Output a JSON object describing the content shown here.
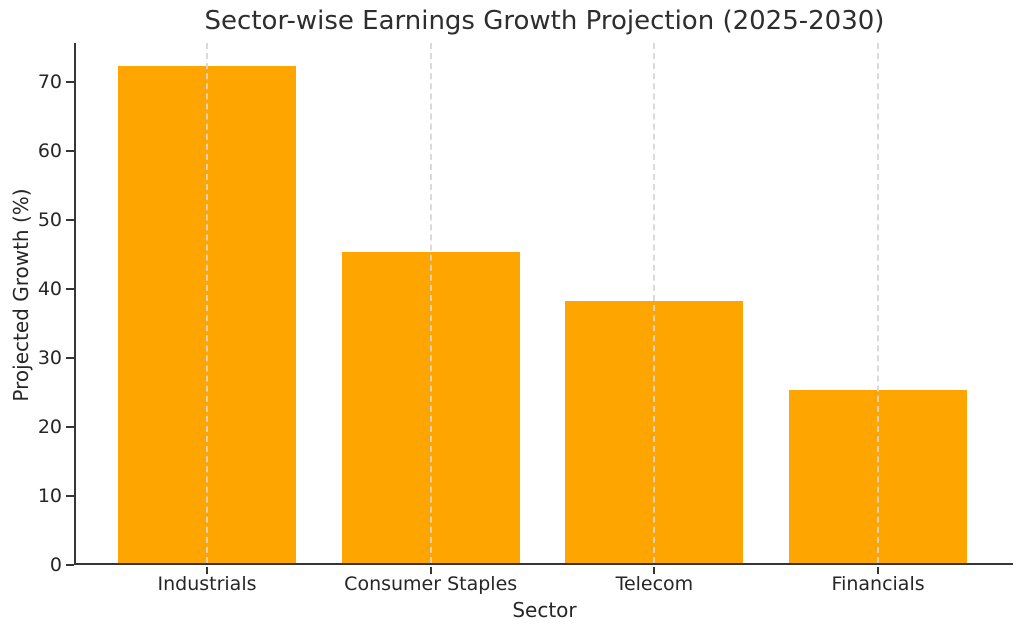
{
  "chart_data": {
    "type": "bar",
    "title": "Sector-wise Earnings Growth Projection (2025-2030)",
    "xlabel": "Sector",
    "ylabel": "Projected Growth (%)",
    "categories": [
      "Industrials",
      "Consumer Staples",
      "Telecom",
      "Financials"
    ],
    "values": [
      72,
      45,
      38,
      25
    ],
    "yticks": [
      0,
      10,
      20,
      30,
      40,
      50,
      60,
      70
    ],
    "ylim": [
      0,
      75.6
    ],
    "bar_color": "#FFA500",
    "grid": "vertical-dashed-at-category-centers",
    "legend": "none",
    "spines": "left-and-bottom-only",
    "background_color": "#ffffff"
  }
}
